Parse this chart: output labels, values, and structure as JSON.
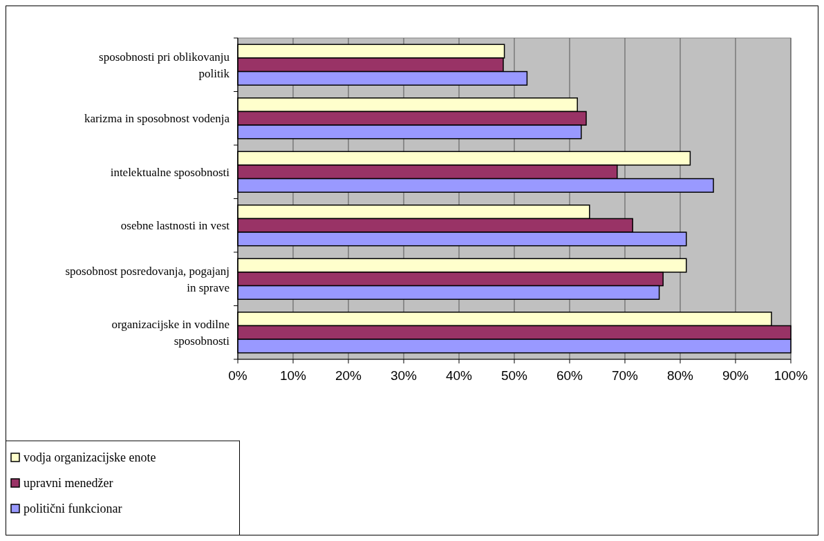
{
  "chart_data": {
    "type": "bar",
    "orientation": "horizontal",
    "categories": [
      "sposobnosti pri oblikovanju politik",
      "karizma in sposobnost vodenja",
      "intelektualne sposobnosti",
      "osebne lastnosti in vest",
      "sposobnost posredovanja, pogajanj in sprave",
      "organizacijske in vodilne sposobnosti"
    ],
    "series": [
      {
        "name": "vodja organizacijske enote",
        "color": "#ffffcc",
        "values": [
          48.2,
          61.4,
          81.8,
          63.6,
          81.1,
          96.5
        ]
      },
      {
        "name": "upravni menedžer",
        "color": "#993366",
        "values": [
          48.0,
          63.0,
          68.6,
          71.4,
          76.9,
          100
        ]
      },
      {
        "name": "politični funkcionar",
        "color": "#9999ff",
        "values": [
          52.3,
          62.1,
          86.0,
          81.1,
          76.2,
          100
        ]
      }
    ],
    "xlim": [
      0,
      100
    ],
    "xticks": [
      {
        "value": 0,
        "label": "0%"
      },
      {
        "value": 10,
        "label": "10%"
      },
      {
        "value": 20,
        "label": "20%"
      },
      {
        "value": 30,
        "label": "30%"
      },
      {
        "value": 40,
        "label": "40%"
      },
      {
        "value": 50,
        "label": "50%"
      },
      {
        "value": 60,
        "label": "60%"
      },
      {
        "value": 70,
        "label": "70%"
      },
      {
        "value": 80,
        "label": "80%"
      },
      {
        "value": 90,
        "label": "90%"
      },
      {
        "value": 100,
        "label": "100%"
      }
    ],
    "grid": "x",
    "legend": "bottom left"
  }
}
